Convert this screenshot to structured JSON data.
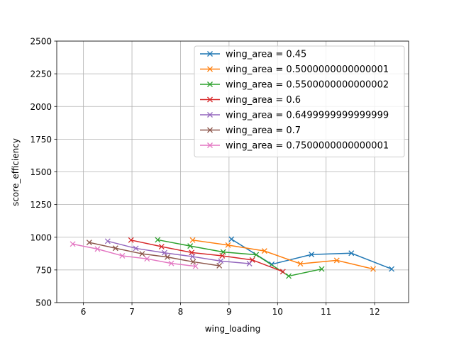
{
  "chart_data": {
    "type": "line",
    "title": "",
    "xlabel": "wing_loading",
    "ylabel": "score_efficiency",
    "xlim": [
      5.45,
      12.7
    ],
    "ylim": [
      500,
      2500
    ],
    "x_ticks": [
      6,
      7,
      8,
      9,
      10,
      11,
      12
    ],
    "y_ticks": [
      500,
      750,
      1000,
      1250,
      1500,
      1750,
      2000,
      2250,
      2500
    ],
    "grid": true,
    "legend_position": "top-right",
    "marker": "x",
    "series": [
      {
        "name": "wing_area = 0.45",
        "color": "#1f77b4",
        "x": [
          9.05,
          9.88,
          10.7,
          11.52,
          12.35
        ],
        "y": [
          985,
          793,
          868,
          878,
          757
        ]
      },
      {
        "name": "wing_area = 0.5000000000000001",
        "color": "#ff7f0e",
        "x": [
          8.25,
          8.98,
          9.73,
          10.47,
          11.22,
          11.97
        ],
        "y": [
          978,
          940,
          895,
          797,
          823,
          757
        ]
      },
      {
        "name": "wing_area = 0.5500000000000002",
        "color": "#2ca02c",
        "x": [
          7.53,
          8.2,
          8.88,
          9.56,
          10.23,
          10.91
        ],
        "y": [
          980,
          933,
          887,
          866,
          703,
          757
        ]
      },
      {
        "name": "wing_area = 0.6",
        "color": "#d62728",
        "x": [
          6.98,
          7.61,
          8.23,
          8.86,
          9.48,
          10.11
        ],
        "y": [
          978,
          928,
          883,
          858,
          826,
          737
        ]
      },
      {
        "name": "wing_area = 0.6499999999999999",
        "color": "#9467bd",
        "x": [
          6.5,
          7.08,
          7.67,
          8.25,
          8.83,
          9.42
        ],
        "y": [
          970,
          915,
          881,
          852,
          818,
          798
        ]
      },
      {
        "name": "wing_area = 0.7",
        "color": "#8c564b",
        "x": [
          6.12,
          6.66,
          7.21,
          7.73,
          8.26,
          8.8
        ],
        "y": [
          960,
          916,
          873,
          848,
          812,
          782
        ]
      },
      {
        "name": "wing_area = 0.7500000000000001",
        "color": "#e377c2",
        "x": [
          5.78,
          6.29,
          6.8,
          7.31,
          7.81,
          8.31
        ],
        "y": [
          948,
          910,
          858,
          835,
          800,
          778
        ]
      }
    ]
  }
}
